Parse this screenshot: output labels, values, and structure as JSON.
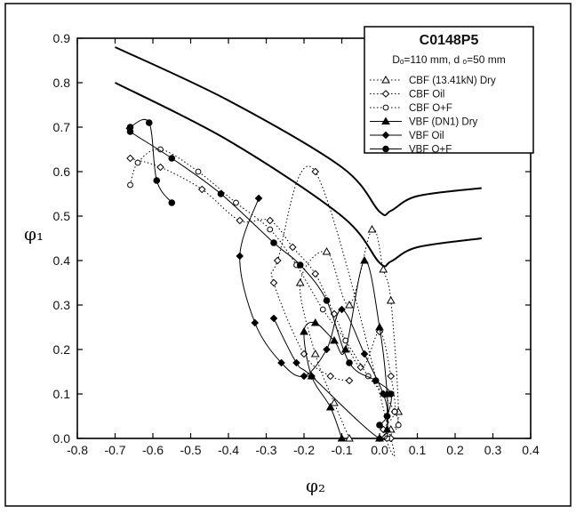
{
  "chart_data": {
    "type": "line",
    "title": "C0148P5",
    "subtitle": "Dₒ=110 mm, d ₒ=50 mm",
    "xlabel": "φ₂",
    "ylabel": "φ₁",
    "xlim": [
      -0.8,
      0.4
    ],
    "ylim": [
      0.0,
      0.9
    ],
    "x_ticks": [
      "-0.8",
      "-0.7",
      "-0.6",
      "-0.5",
      "-0.4",
      "-0.3",
      "-0.2",
      "-0.1",
      "0.0",
      "0.1",
      "0.2",
      "0.3",
      "0.4"
    ],
    "y_ticks": [
      "0.0",
      "0.1",
      "0.2",
      "0.3",
      "0.4",
      "0.5",
      "0.6",
      "0.7",
      "0.8",
      "0.9"
    ],
    "grid": false,
    "legend_position": "top-right",
    "boundary_lines": [
      {
        "x": [
          -0.7,
          -0.4,
          -0.1,
          0.0,
          0.03,
          0.1,
          0.27
        ],
        "y": [
          0.88,
          0.76,
          0.61,
          0.51,
          0.512,
          0.545,
          0.563
        ]
      },
      {
        "x": [
          -0.7,
          -0.4,
          -0.1,
          0.0,
          0.03,
          0.1,
          0.27
        ],
        "y": [
          0.8,
          0.67,
          0.5,
          0.395,
          0.398,
          0.43,
          0.45
        ]
      }
    ],
    "series": [
      {
        "name": "CBF (13.41kN) Dry",
        "marker": "triangle-open",
        "line": "dotted",
        "x": [
          -0.08,
          -0.12,
          -0.17,
          -0.21,
          -0.14,
          -0.08,
          -0.02,
          0.01,
          0.03,
          0.05,
          0.03,
          0.0
        ],
        "y": [
          0.0,
          0.08,
          0.19,
          0.35,
          0.42,
          0.3,
          0.47,
          0.38,
          0.31,
          0.06,
          0.02,
          0.0
        ]
      },
      {
        "name": "CBF Oil",
        "marker": "diamond-open",
        "line": "dotted",
        "x": [
          -0.66,
          -0.58,
          -0.47,
          -0.37,
          -0.29,
          -0.23,
          -0.17,
          -0.12,
          -0.05,
          0.0,
          0.03,
          0.04,
          0.01,
          0.03,
          -0.17,
          -0.27,
          -0.28,
          -0.2,
          -0.13,
          -0.08
        ],
        "y": [
          0.63,
          0.61,
          0.56,
          0.49,
          0.49,
          0.43,
          0.37,
          0.28,
          0.16,
          0.24,
          0.14,
          0.06,
          0.02,
          0.0,
          0.6,
          0.4,
          0.35,
          0.19,
          0.14,
          0.13
        ]
      },
      {
        "name": "CBF O+F",
        "marker": "circle-open",
        "line": "dotted",
        "x": [
          -0.66,
          -0.64,
          -0.58,
          -0.48,
          -0.38,
          -0.29,
          -0.22,
          -0.15,
          -0.09,
          -0.03,
          0.01,
          0.04,
          0.05,
          0.02
        ],
        "y": [
          0.57,
          0.62,
          0.65,
          0.6,
          0.53,
          0.47,
          0.39,
          0.29,
          0.22,
          0.14,
          0.1,
          0.06,
          0.03,
          0.0
        ]
      },
      {
        "name": "VBF (DN1) Dry",
        "marker": "triangle-filled",
        "line": "solid",
        "x": [
          -0.1,
          -0.13,
          -0.18,
          -0.2,
          -0.17,
          -0.12,
          -0.09,
          -0.04,
          0.0,
          0.02,
          0.02,
          0.0
        ],
        "y": [
          0.0,
          0.07,
          0.14,
          0.24,
          0.26,
          0.22,
          0.2,
          0.4,
          0.25,
          0.1,
          0.02,
          0.0
        ]
      },
      {
        "name": "VBF Oil",
        "marker": "diamond-filled",
        "line": "solid",
        "x": [
          -0.32,
          -0.37,
          -0.33,
          -0.26,
          -0.2,
          -0.14,
          -0.1,
          -0.04,
          0.01,
          0.02,
          0.0,
          -0.18,
          -0.22,
          -0.28
        ],
        "y": [
          0.54,
          0.41,
          0.26,
          0.17,
          0.14,
          0.2,
          0.29,
          0.19,
          0.1,
          0.05,
          0.0,
          0.14,
          0.17,
          0.27
        ]
      },
      {
        "name": "VBF O+F",
        "marker": "circle-filled",
        "line": "solid",
        "x": [
          -0.55,
          -0.59,
          -0.61,
          -0.66,
          -0.66,
          -0.55,
          -0.42,
          -0.28,
          -0.21,
          -0.14,
          -0.08,
          -0.01,
          0.03,
          0.02,
          0.0
        ],
        "y": [
          0.53,
          0.58,
          0.71,
          0.7,
          0.69,
          0.63,
          0.55,
          0.44,
          0.39,
          0.31,
          0.17,
          0.13,
          0.1,
          0.05,
          0.03
        ]
      }
    ]
  }
}
